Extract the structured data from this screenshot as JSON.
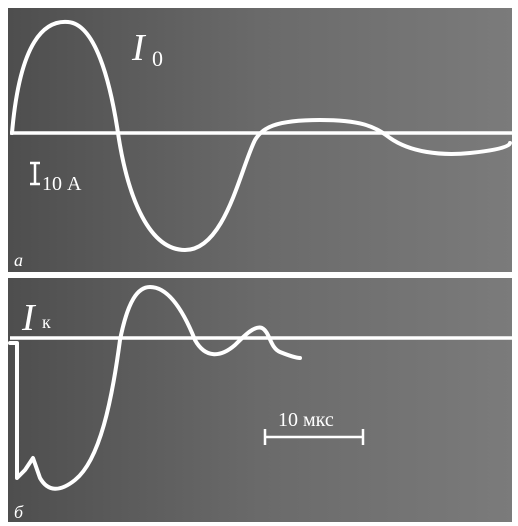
{
  "panels": [
    {
      "label": "а",
      "signal": "I",
      "subscript": "0",
      "scale": "10 А"
    },
    {
      "label": "б",
      "signal": "I",
      "subscript": "к",
      "scale": "10 мкс"
    }
  ]
}
